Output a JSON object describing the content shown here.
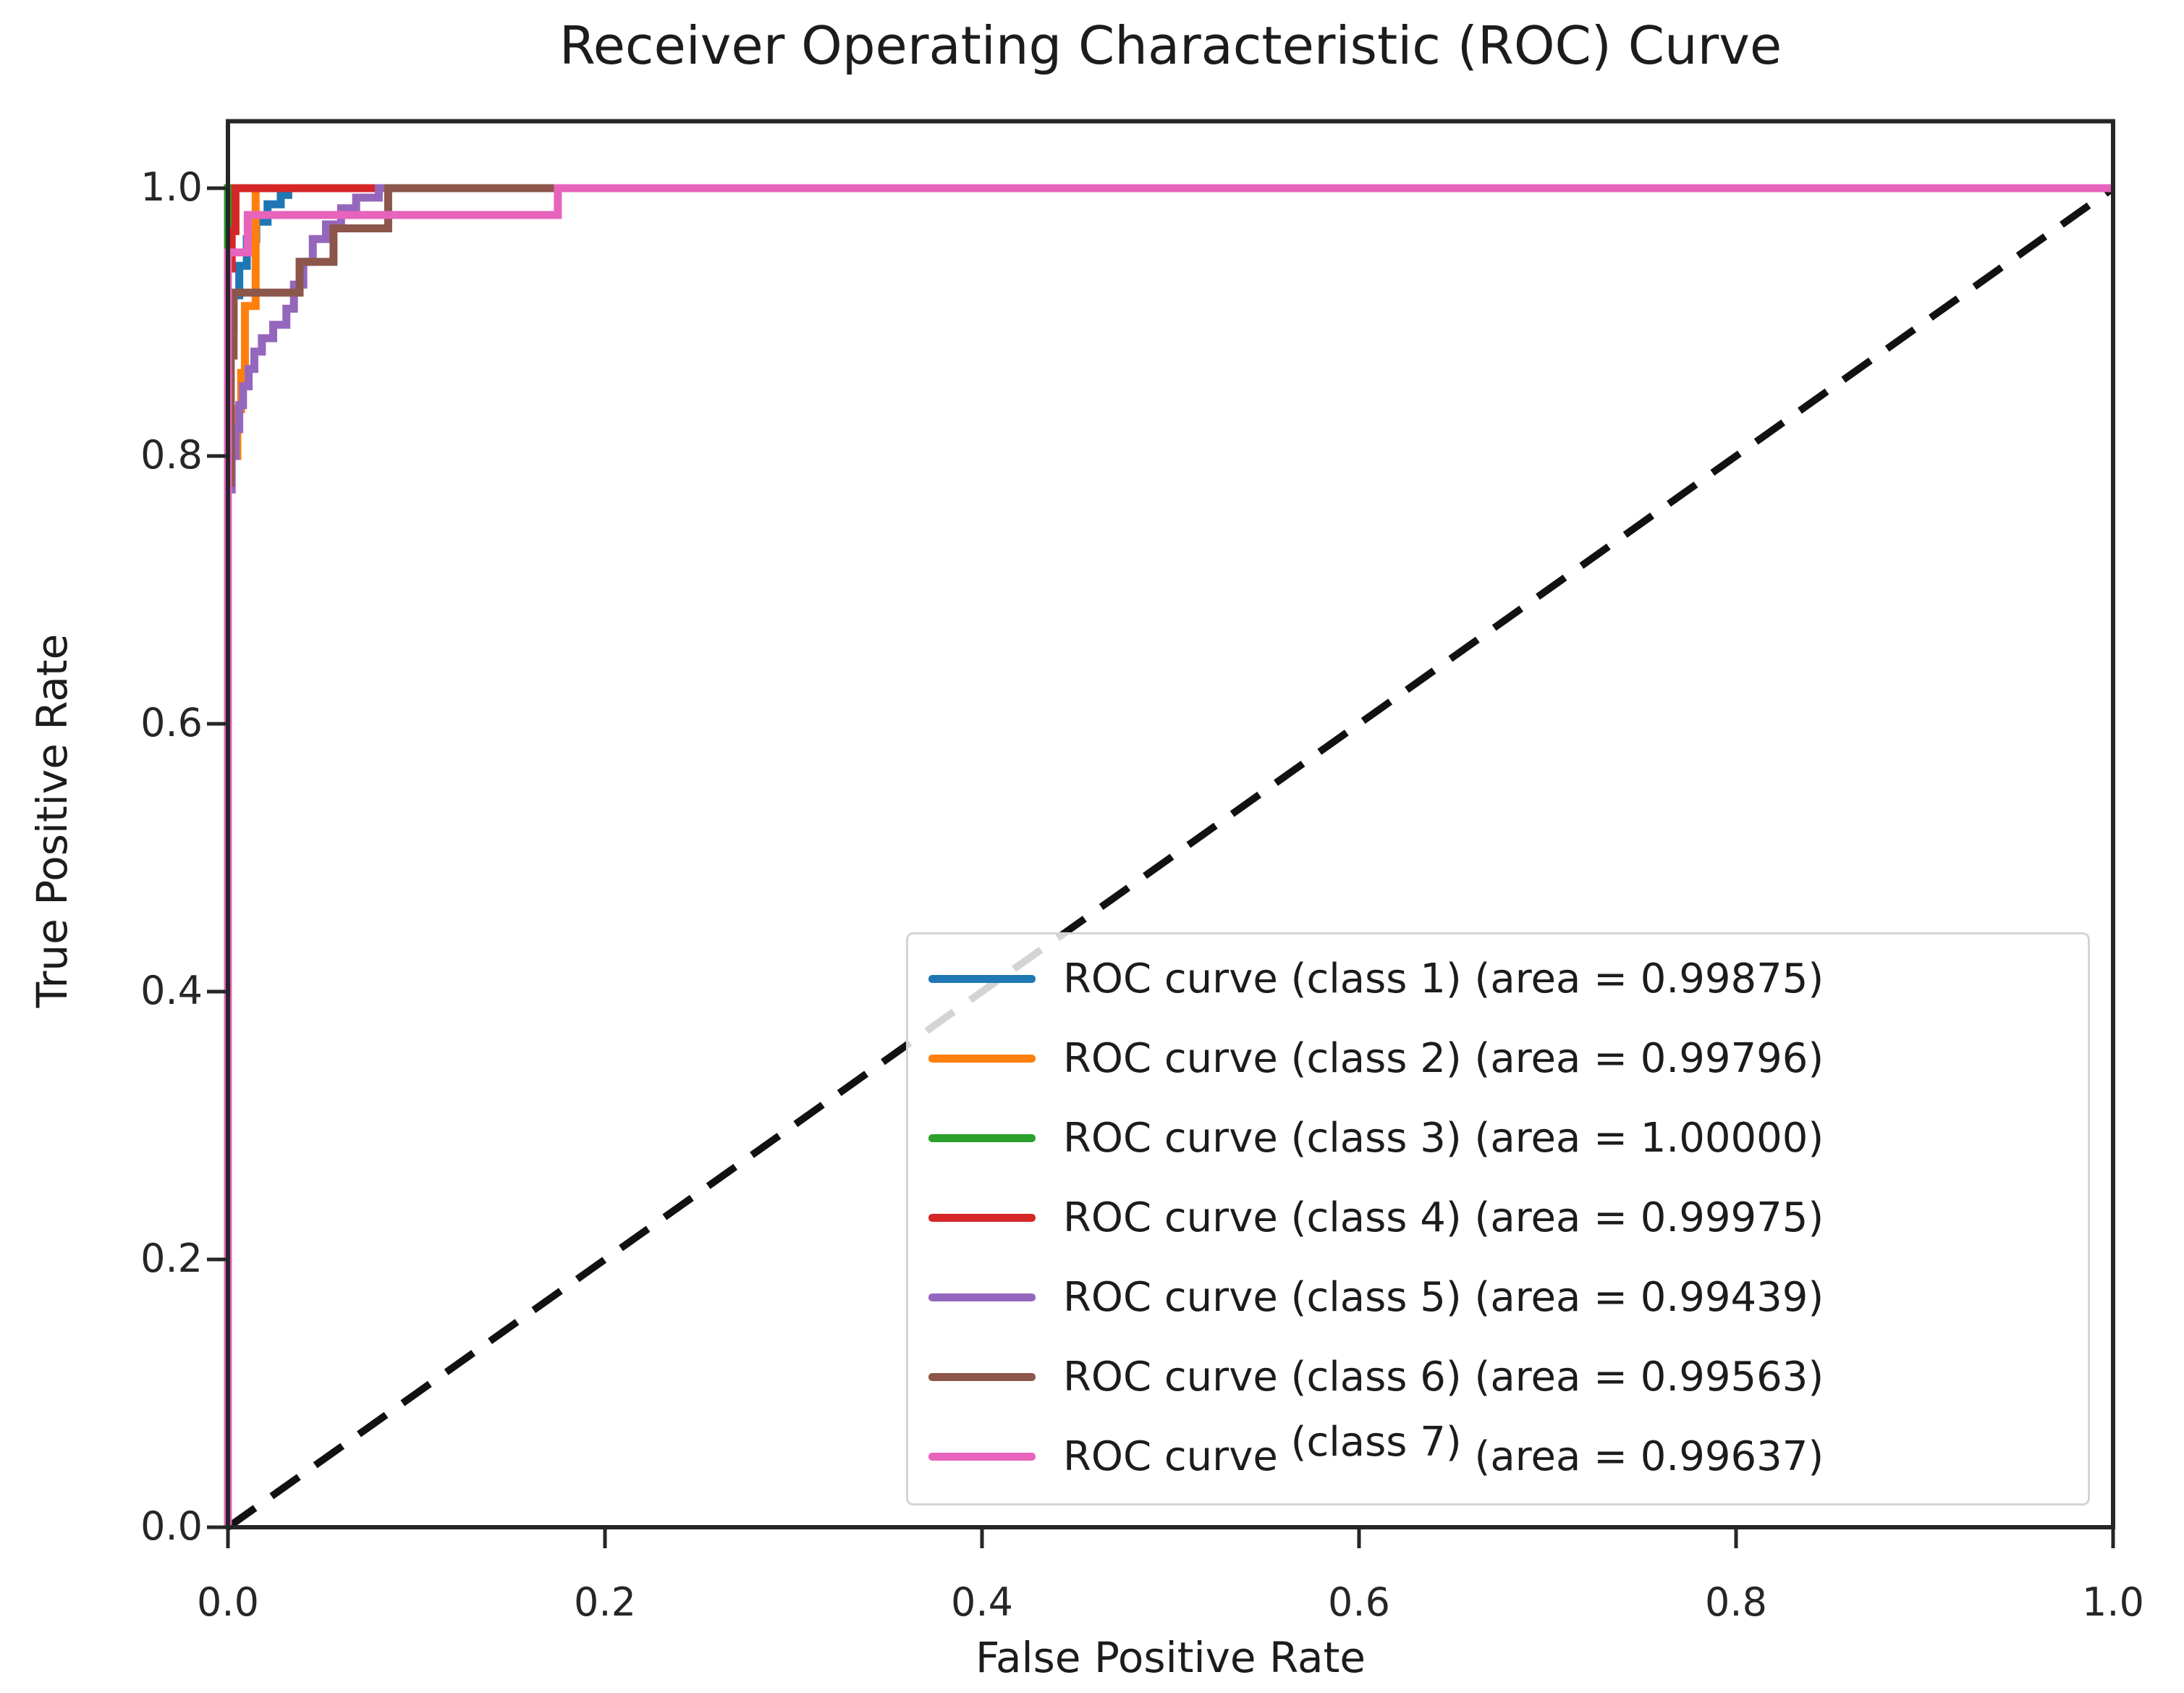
{
  "chart_data": {
    "type": "line",
    "title": "Receiver Operating Characteristic (ROC) Curve",
    "xlabel": "False Positive Rate",
    "ylabel": "True Positive Rate",
    "xlim": [
      0.0,
      1.0
    ],
    "ylim": [
      0.0,
      1.05
    ],
    "grid": false,
    "legend_position": "lower right",
    "x_ticks": [
      {
        "value": 0.0,
        "label": "0.0"
      },
      {
        "value": 0.2,
        "label": "0.2"
      },
      {
        "value": 0.4,
        "label": "0.4"
      },
      {
        "value": 0.6,
        "label": "0.6"
      },
      {
        "value": 0.8,
        "label": "0.8"
      },
      {
        "value": 1.0,
        "label": "1.0"
      }
    ],
    "y_ticks": [
      {
        "value": 0.0,
        "label": "0.0"
      },
      {
        "value": 0.2,
        "label": "0.2"
      },
      {
        "value": 0.4,
        "label": "0.4"
      },
      {
        "value": 0.6,
        "label": "0.6"
      },
      {
        "value": 0.8,
        "label": "0.8"
      },
      {
        "value": 1.0,
        "label": "1.0"
      }
    ],
    "series": [
      {
        "name": "ROC curve (class 1) (area = 0.99875)",
        "legend_parts": [
          "ROC curve ",
          "(class 1)",
          " (area = 0.99875)"
        ],
        "class": "1",
        "auc": 0.99875,
        "color": "#1f77b4",
        "style": "solid",
        "raised_class_part": false,
        "points": [
          [
            0,
            0
          ],
          [
            0,
            0.895
          ],
          [
            0.003,
            0.895
          ],
          [
            0.003,
            0.92
          ],
          [
            0.006,
            0.92
          ],
          [
            0.006,
            0.942
          ],
          [
            0.01,
            0.942
          ],
          [
            0.01,
            0.962
          ],
          [
            0.015,
            0.962
          ],
          [
            0.015,
            0.975
          ],
          [
            0.021,
            0.975
          ],
          [
            0.021,
            0.988
          ],
          [
            0.028,
            0.988
          ],
          [
            0.028,
            0.995
          ],
          [
            0.032,
            0.995
          ],
          [
            0.032,
            1
          ],
          [
            1,
            1
          ]
        ]
      },
      {
        "name": "ROC curve (class 2) (area = 0.99796)",
        "legend_parts": [
          "ROC curve ",
          "(class 2)",
          " (area = 0.99796)"
        ],
        "class": "2",
        "auc": 0.99796,
        "color": "#ff7f0e",
        "style": "solid",
        "raised_class_part": false,
        "points": [
          [
            0,
            0
          ],
          [
            0,
            0.8
          ],
          [
            0.005,
            0.8
          ],
          [
            0.005,
            0.835
          ],
          [
            0.007,
            0.835
          ],
          [
            0.007,
            0.862
          ],
          [
            0.009,
            0.862
          ],
          [
            0.009,
            0.912
          ],
          [
            0.0147,
            0.912
          ],
          [
            0.0147,
            1
          ],
          [
            1,
            1
          ]
        ]
      },
      {
        "name": "ROC curve (class 3) (area = 1.00000)",
        "legend_parts": [
          "ROC curve ",
          "(class 3)",
          " (area = 1.00000)"
        ],
        "class": "3",
        "auc": 1.0,
        "color": "#2ca02c",
        "style": "solid",
        "raised_class_part": false,
        "points": [
          [
            0,
            0
          ],
          [
            0,
            1
          ],
          [
            1,
            1
          ]
        ]
      },
      {
        "name": "ROC curve (class 4) (area = 0.99975)",
        "legend_parts": [
          "ROC curve ",
          "(class 4)",
          " (area = 0.99975)"
        ],
        "class": "4",
        "auc": 0.99975,
        "color": "#d62728",
        "style": "solid",
        "raised_class_part": false,
        "points": [
          [
            0,
            0
          ],
          [
            0,
            0.94
          ],
          [
            0.002,
            0.94
          ],
          [
            0.002,
            0.968
          ],
          [
            0.004,
            0.968
          ],
          [
            0.004,
            1
          ],
          [
            1,
            1
          ]
        ]
      },
      {
        "name": "ROC curve (class 5) (area = 0.99439)",
        "legend_parts": [
          "ROC curve ",
          "(class 5)",
          " (area = 0.99439)"
        ],
        "class": "5",
        "auc": 0.99439,
        "color": "#9467bd",
        "style": "solid",
        "raised_class_part": false,
        "points": [
          [
            0,
            0
          ],
          [
            0,
            0.775
          ],
          [
            0.002,
            0.775
          ],
          [
            0.002,
            0.8
          ],
          [
            0.004,
            0.8
          ],
          [
            0.004,
            0.82
          ],
          [
            0.006,
            0.82
          ],
          [
            0.006,
            0.838
          ],
          [
            0.008,
            0.838
          ],
          [
            0.008,
            0.852
          ],
          [
            0.011,
            0.852
          ],
          [
            0.011,
            0.865
          ],
          [
            0.014,
            0.865
          ],
          [
            0.014,
            0.878
          ],
          [
            0.018,
            0.878
          ],
          [
            0.018,
            0.888
          ],
          [
            0.024,
            0.888
          ],
          [
            0.024,
            0.898
          ],
          [
            0.031,
            0.898
          ],
          [
            0.031,
            0.91
          ],
          [
            0.035,
            0.91
          ],
          [
            0.035,
            0.928
          ],
          [
            0.04,
            0.928
          ],
          [
            0.04,
            0.945
          ],
          [
            0.045,
            0.945
          ],
          [
            0.045,
            0.962
          ],
          [
            0.052,
            0.962
          ],
          [
            0.052,
            0.973
          ],
          [
            0.06,
            0.973
          ],
          [
            0.06,
            0.985
          ],
          [
            0.068,
            0.985
          ],
          [
            0.068,
            0.993
          ],
          [
            0.08,
            0.993
          ],
          [
            0.08,
            1
          ],
          [
            1,
            1
          ]
        ]
      },
      {
        "name": "ROC curve (class 6) (area = 0.99563)",
        "legend_parts": [
          "ROC curve ",
          "(class 6)",
          " (area = 0.99563)"
        ],
        "class": "6",
        "auc": 0.99563,
        "color": "#8c564b",
        "style": "solid",
        "raised_class_part": false,
        "points": [
          [
            0,
            0
          ],
          [
            0,
            0.78
          ],
          [
            0.0015,
            0.78
          ],
          [
            0.0015,
            0.875
          ],
          [
            0.003,
            0.875
          ],
          [
            0.003,
            0.922
          ],
          [
            0.038,
            0.922
          ],
          [
            0.038,
            0.945
          ],
          [
            0.056,
            0.945
          ],
          [
            0.056,
            0.97
          ],
          [
            0.085,
            0.97
          ],
          [
            0.085,
            1
          ],
          [
            1,
            1
          ]
        ]
      },
      {
        "name": "ROC curve (class 7) (area = 0.99637)",
        "legend_parts": [
          "ROC curve ",
          "(class 7)",
          " (area = 0.99637)"
        ],
        "class": "7",
        "auc": 0.99637,
        "color": "#e763bc",
        "style": "solid",
        "raised_class_part": true,
        "points": [
          [
            0,
            0
          ],
          [
            0,
            0.952
          ],
          [
            0.0105,
            0.952
          ],
          [
            0.0105,
            0.98
          ],
          [
            0.175,
            0.98
          ],
          [
            0.175,
            1
          ],
          [
            1,
            1
          ]
        ]
      }
    ],
    "reference_line": {
      "name": "chance-diagonal",
      "color": "#111111",
      "style": "dashed",
      "points": [
        [
          0,
          0
        ],
        [
          1,
          1
        ]
      ]
    },
    "colors": {
      "axis": "#262626",
      "text": "#1c1c1c",
      "legend_border": "#d4d4d4"
    }
  }
}
